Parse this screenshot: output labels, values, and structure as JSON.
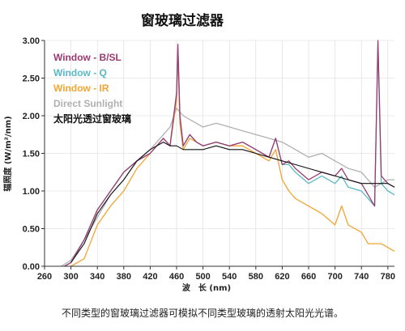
{
  "chart_data": {
    "type": "line",
    "title": "窗玻璃过滤器",
    "xlabel": "波　长 (nm)",
    "ylabel": "辐照度 (W/m²/nm)",
    "caption": "不同类型的窗玻璃过滤器可模拟不同类型玻璃的透射太阳光光谱。",
    "xlim": [
      260,
      790
    ],
    "ylim": [
      0,
      3
    ],
    "x_ticks": [
      "260",
      "300",
      "340",
      "380",
      "420",
      "460",
      "500",
      "540",
      "580",
      "620",
      "660",
      "700",
      "740",
      "780"
    ],
    "y_ticks": [
      "0.00",
      "0.50",
      "1.00",
      "1.50",
      "2.00",
      "2.50",
      "3.00"
    ],
    "grid": true,
    "legend_position": "top-left",
    "series": [
      {
        "name": "Direct Sunlight",
        "color": "#b0b0b0",
        "x": [
          285,
          300,
          320,
          340,
          360,
          380,
          400,
          420,
          440,
          450,
          460,
          470,
          480,
          500,
          520,
          540,
          560,
          580,
          600,
          620,
          640,
          660,
          680,
          700,
          720,
          740,
          760,
          780,
          790
        ],
        "y": [
          0,
          0.08,
          0.35,
          0.65,
          0.95,
          1.15,
          1.4,
          1.55,
          1.75,
          1.85,
          2.1,
          2.0,
          1.95,
          1.85,
          1.9,
          1.85,
          1.8,
          1.75,
          1.7,
          1.65,
          1.55,
          1.45,
          1.5,
          1.4,
          1.3,
          1.25,
          1.05,
          1.15,
          1.15
        ]
      },
      {
        "name": "Window - B/SL",
        "color": "#9b3a72",
        "x": [
          290,
          300,
          320,
          340,
          360,
          380,
          400,
          420,
          440,
          450,
          460,
          462,
          465,
          470,
          480,
          490,
          500,
          520,
          540,
          560,
          580,
          600,
          610,
          620,
          630,
          640,
          660,
          680,
          700,
          710,
          720,
          740,
          760,
          765,
          770,
          780,
          790
        ],
        "y": [
          0,
          0.05,
          0.35,
          0.75,
          1.0,
          1.25,
          1.4,
          1.5,
          1.7,
          1.6,
          2.3,
          2.95,
          2.0,
          1.6,
          1.75,
          1.65,
          1.6,
          1.65,
          1.6,
          1.65,
          1.55,
          1.45,
          1.7,
          1.35,
          1.4,
          1.3,
          1.15,
          1.25,
          1.2,
          1.3,
          1.15,
          1.1,
          0.8,
          3.0,
          1.2,
          1.1,
          1.05
        ]
      },
      {
        "name": "Window - Q",
        "color": "#5ab8c4",
        "x": [
          290,
          300,
          320,
          340,
          360,
          380,
          400,
          420,
          440,
          450,
          460,
          462,
          465,
          470,
          480,
          490,
          500,
          520,
          540,
          560,
          580,
          600,
          610,
          620,
          630,
          640,
          660,
          680,
          700,
          710,
          720,
          740,
          760,
          765,
          770,
          780,
          790
        ],
        "y": [
          0,
          0.05,
          0.35,
          0.75,
          1.0,
          1.25,
          1.4,
          1.5,
          1.7,
          1.6,
          2.3,
          2.9,
          2.0,
          1.6,
          1.75,
          1.65,
          1.6,
          1.65,
          1.6,
          1.65,
          1.55,
          1.45,
          1.7,
          1.35,
          1.35,
          1.25,
          1.1,
          1.2,
          1.1,
          1.2,
          1.05,
          1.0,
          0.8,
          2.95,
          1.1,
          1.0,
          0.95
        ]
      },
      {
        "name": "Window - IR",
        "color": "#f2a531",
        "x": [
          300,
          320,
          340,
          360,
          380,
          400,
          420,
          440,
          450,
          460,
          462,
          465,
          470,
          480,
          500,
          520,
          540,
          560,
          580,
          600,
          610,
          620,
          630,
          640,
          650,
          660,
          680,
          700,
          710,
          720,
          740,
          750,
          760,
          770,
          780,
          790
        ],
        "y": [
          0,
          0.1,
          0.55,
          0.8,
          1.0,
          1.3,
          1.5,
          1.7,
          1.6,
          2.2,
          2.8,
          1.9,
          1.55,
          1.7,
          1.6,
          1.65,
          1.6,
          1.6,
          1.5,
          1.4,
          1.55,
          1.15,
          1.0,
          0.9,
          0.85,
          0.8,
          0.7,
          0.55,
          0.8,
          0.55,
          0.45,
          0.3,
          0.3,
          0.3,
          0.25,
          0.2
        ]
      },
      {
        "name": "太阳光透过窗玻璃",
        "color": "#111111",
        "x": [
          300,
          320,
          340,
          360,
          380,
          400,
          420,
          440,
          450,
          460,
          470,
          480,
          500,
          520,
          540,
          560,
          580,
          600,
          620,
          640,
          660,
          680,
          700,
          720,
          740,
          760,
          780,
          790
        ],
        "y": [
          0.05,
          0.3,
          0.7,
          0.95,
          1.15,
          1.4,
          1.55,
          1.65,
          1.6,
          1.6,
          1.55,
          1.55,
          1.55,
          1.6,
          1.55,
          1.55,
          1.5,
          1.45,
          1.4,
          1.35,
          1.3,
          1.25,
          1.2,
          1.15,
          1.1,
          1.1,
          1.1,
          1.05
        ]
      }
    ],
    "legend_order": [
      1,
      2,
      3,
      0,
      4
    ]
  }
}
